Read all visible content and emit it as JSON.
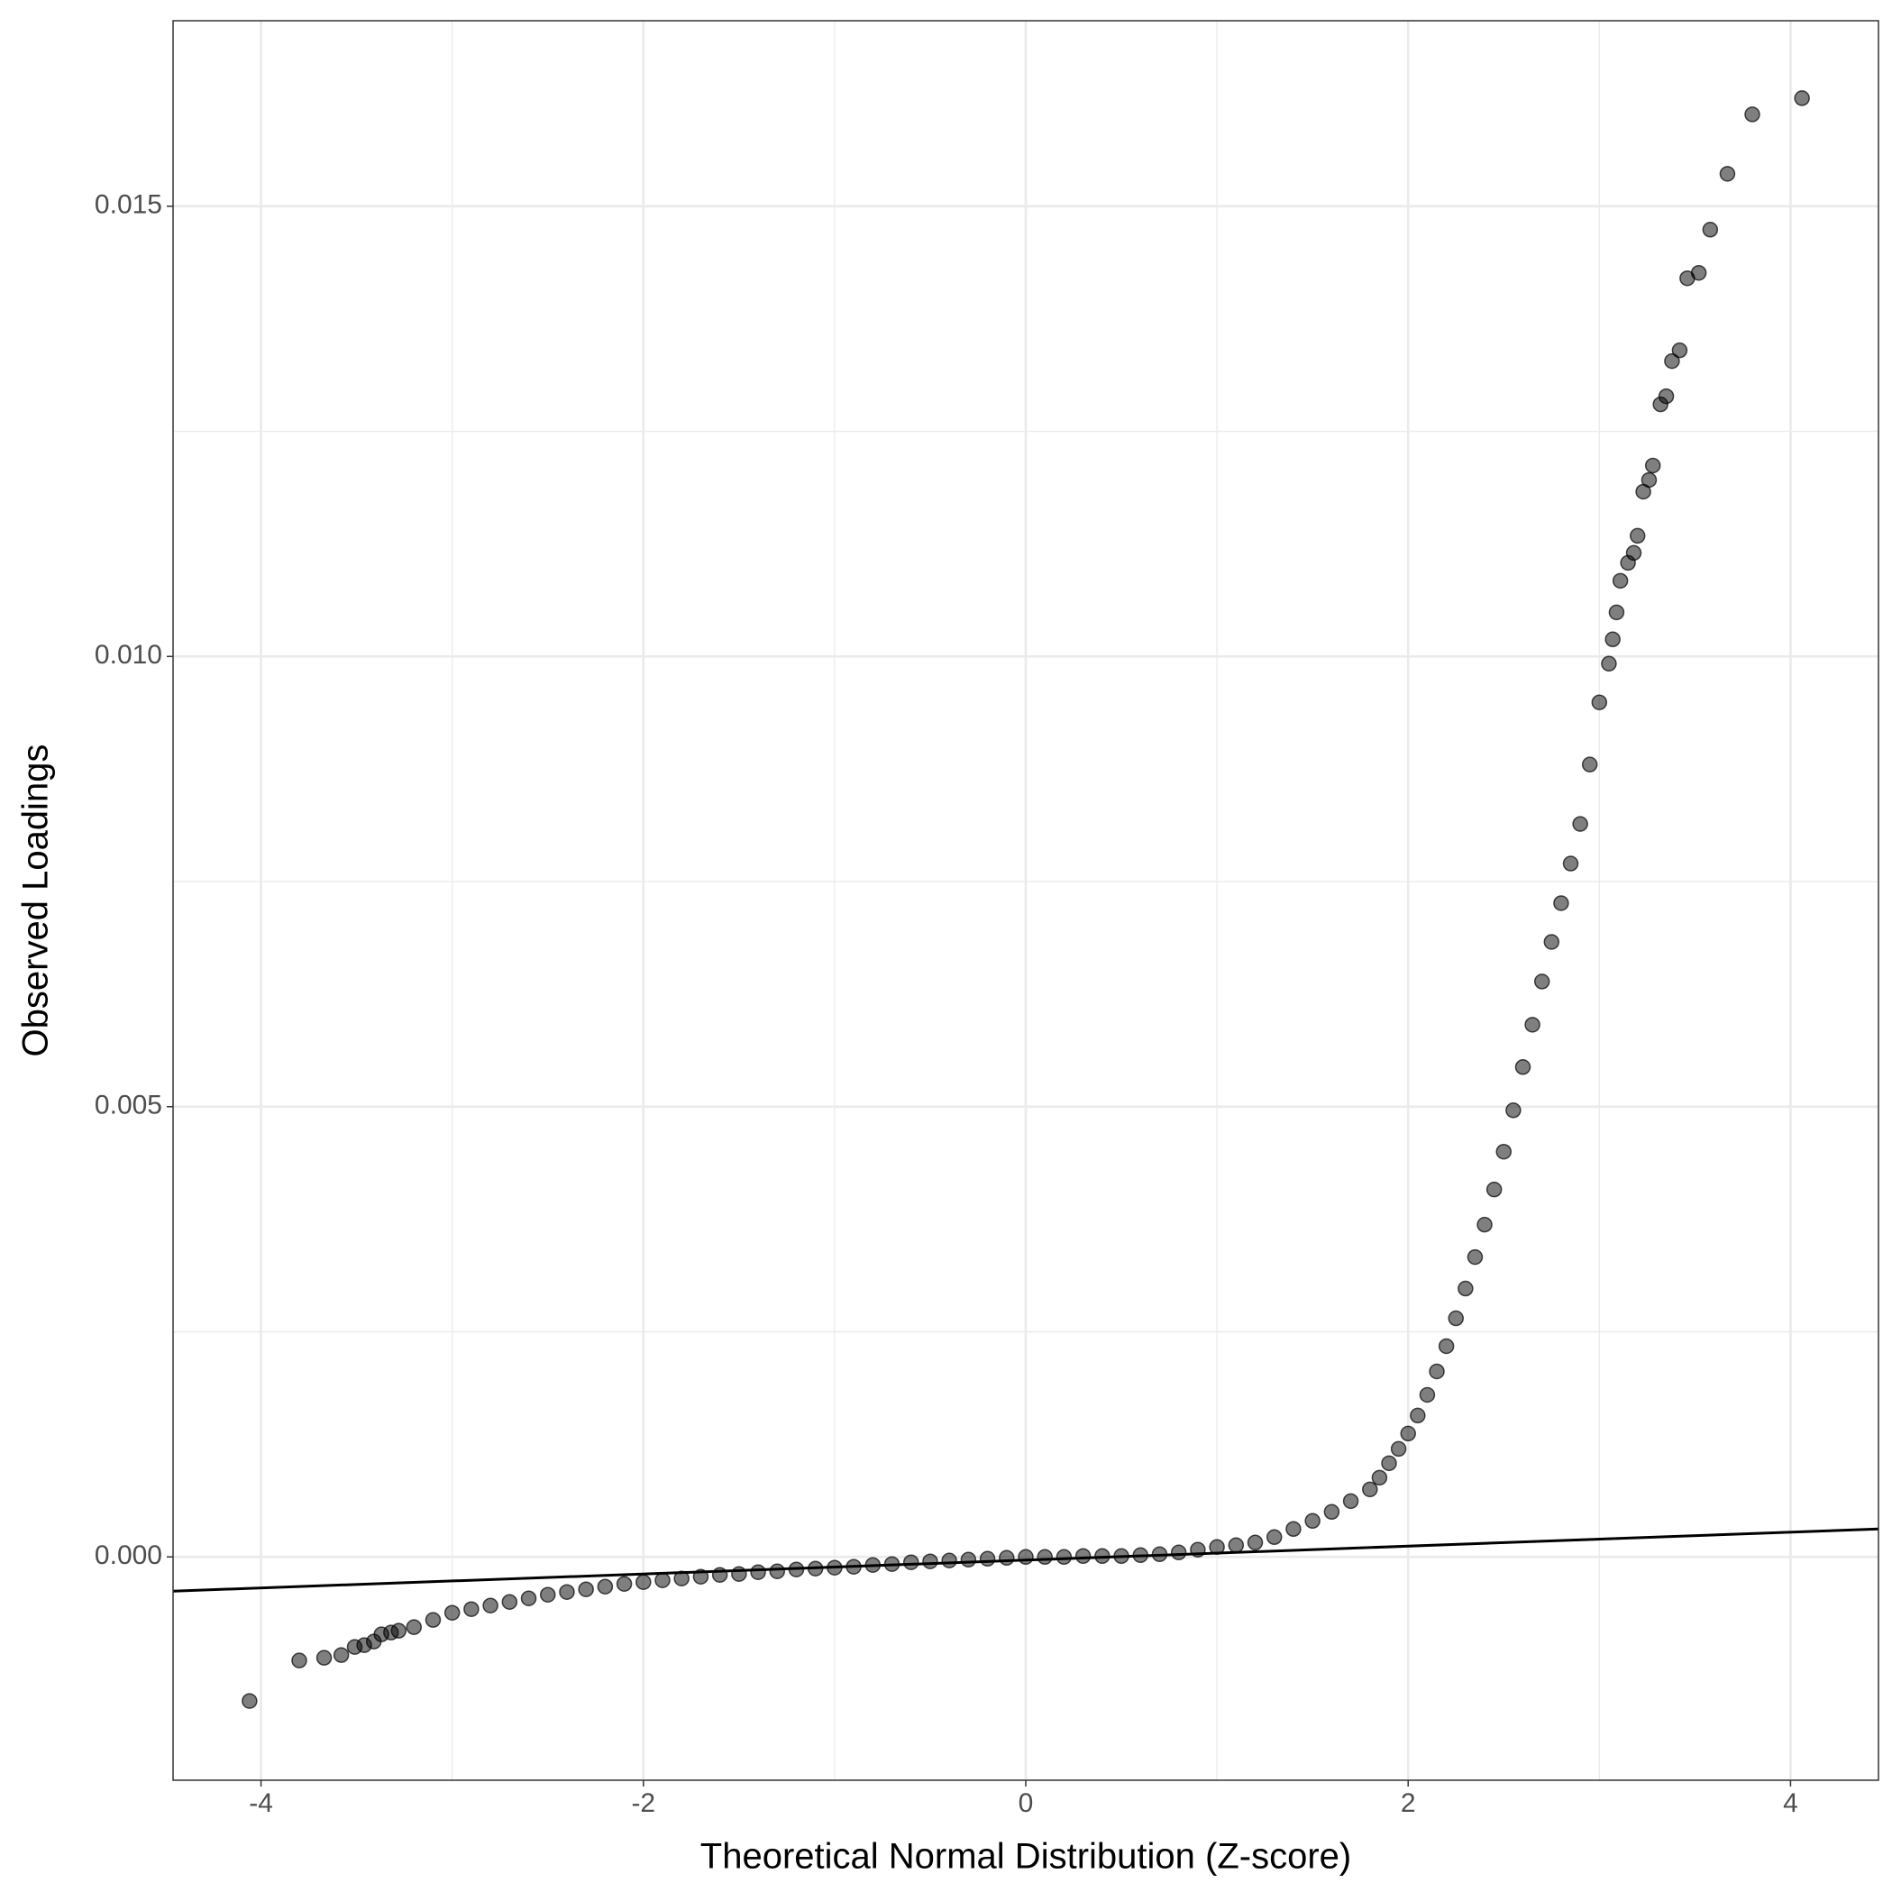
{
  "chart_data": {
    "type": "scatter",
    "x_label": "Theoretical Normal Distribution (Z-score)",
    "y_label": "Observed Loadings",
    "xlim": [
      -4.46,
      4.46
    ],
    "ylim": [
      -0.00248,
      0.01706
    ],
    "xticks": [
      -4,
      -2,
      0,
      2,
      4
    ],
    "yticks": [
      {
        "value": 0,
        "label": "0.000"
      },
      {
        "value": 0.005,
        "label": "0.005"
      },
      {
        "value": 0.01,
        "label": "0.010"
      },
      {
        "value": 0.015,
        "label": "0.015"
      }
    ],
    "minor_xticks": [
      -3,
      -1,
      1,
      3
    ],
    "minor_yticks": [
      0.0025,
      0.0075,
      0.0125
    ],
    "grid": true,
    "point_alpha": 0.5,
    "reference_line": {
      "color": "#000000",
      "x": [
        -4.46,
        4.46
      ],
      "y": [
        -0.00038,
        0.00031
      ]
    },
    "series": [
      {
        "color": "#000000",
        "x": [
          -4.06,
          -3.8,
          -3.67,
          -3.58,
          -3.51,
          -3.46,
          -3.41,
          -3.37,
          -3.32,
          -3.28,
          -3.2,
          -3.1,
          -3.0,
          -2.9,
          -2.8,
          -2.7,
          -2.6,
          -2.5,
          -2.4,
          -2.3,
          -2.2,
          -2.1,
          -2.0,
          -1.9,
          -1.8,
          -1.7,
          -1.6,
          -1.5,
          -1.4,
          -1.3,
          -1.2,
          -1.1,
          -1.0,
          -0.9,
          -0.8,
          -0.7,
          -0.6,
          -0.5,
          -0.4,
          -0.3,
          -0.2,
          -0.1,
          0,
          0.1,
          0.2,
          0.3,
          0.4,
          0.5,
          0.6,
          0.7,
          0.8,
          0.9,
          1.0,
          1.1,
          1.2,
          1.3,
          1.4,
          1.5,
          1.6,
          1.7,
          1.8,
          1.85,
          1.9,
          1.95,
          2.0,
          2.05,
          2.1,
          2.15,
          2.2,
          2.25,
          2.3,
          2.35,
          2.4,
          2.45,
          2.5,
          2.55,
          2.6,
          2.65,
          2.7,
          2.75,
          2.8,
          2.85,
          2.9,
          2.95,
          3.0,
          3.05,
          3.07,
          3.09,
          3.11,
          3.15,
          3.18,
          3.2,
          3.23,
          3.26,
          3.28,
          3.32,
          3.35,
          3.38,
          3.42,
          3.46,
          3.52,
          3.58,
          3.67,
          3.8,
          4.06
        ],
        "values": [
          -0.0016,
          -0.00115,
          -0.00112,
          -0.00109,
          -0.001,
          -0.00098,
          -0.00094,
          -0.00086,
          -0.00084,
          -0.00082,
          -0.00078,
          -0.0007,
          -0.00062,
          -0.00058,
          -0.00054,
          -0.0005,
          -0.00046,
          -0.00042,
          -0.00039,
          -0.00036,
          -0.00033,
          -0.0003,
          -0.00028,
          -0.00026,
          -0.00024,
          -0.00022,
          -0.0002,
          -0.00019,
          -0.00017,
          -0.00016,
          -0.00014,
          -0.00013,
          -0.00012,
          -0.00011,
          -9e-05,
          -8e-05,
          -6e-05,
          -5e-05,
          -4e-05,
          -3e-05,
          -2e-05,
          -1e-05,
          0,
          0,
          0,
          1e-05,
          1e-05,
          1e-05,
          2e-05,
          3e-05,
          5e-05,
          8e-05,
          0.00011,
          0.00013,
          0.00016,
          0.00022,
          0.00031,
          0.0004,
          0.0005,
          0.00062,
          0.00075,
          0.00088,
          0.00104,
          0.0012,
          0.00137,
          0.00157,
          0.0018,
          0.00206,
          0.00234,
          0.00265,
          0.00298,
          0.00333,
          0.00369,
          0.00408,
          0.0045,
          0.00496,
          0.00544,
          0.00591,
          0.00639,
          0.00683,
          0.00726,
          0.0077,
          0.00814,
          0.0088,
          0.00949,
          0.00992,
          0.01019,
          0.01049,
          0.01084,
          0.01104,
          0.01115,
          0.01134,
          0.01183,
          0.01196,
          0.01212,
          0.0128,
          0.01289,
          0.01328,
          0.0134,
          0.0142,
          0.01426,
          0.01474,
          0.01536,
          0.01602,
          0.0162
        ]
      }
    ]
  }
}
